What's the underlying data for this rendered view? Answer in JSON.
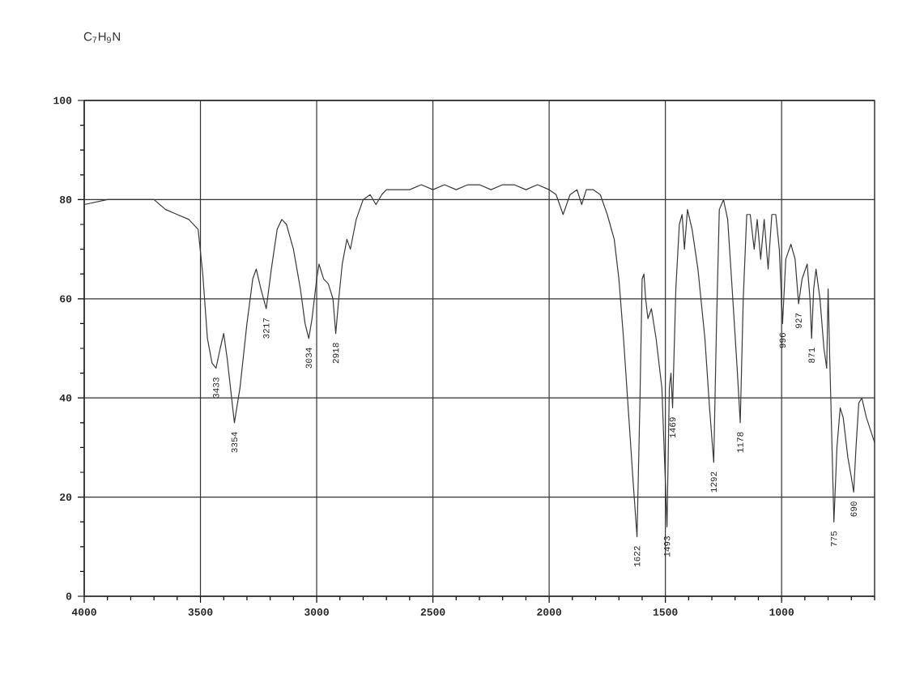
{
  "chart_data": {
    "type": "line",
    "title": "C$_{7}$H$_{9}$N",
    "x": [
      4000,
      3900,
      3800,
      3700,
      3650,
      3600,
      3550,
      3510,
      3490,
      3470,
      3450,
      3433,
      3415,
      3400,
      3385,
      3354,
      3330,
      3300,
      3275,
      3260,
      3240,
      3217,
      3195,
      3170,
      3150,
      3130,
      3100,
      3070,
      3050,
      3034,
      3020,
      3000,
      2990,
      2970,
      2950,
      2930,
      2918,
      2905,
      2890,
      2870,
      2855,
      2830,
      2800,
      2770,
      2745,
      2720,
      2700,
      2650,
      2600,
      2550,
      2500,
      2450,
      2400,
      2350,
      2300,
      2250,
      2200,
      2150,
      2100,
      2050,
      2000,
      1970,
      1940,
      1910,
      1880,
      1860,
      1840,
      1810,
      1780,
      1750,
      1720,
      1700,
      1680,
      1660,
      1640,
      1622,
      1610,
      1600,
      1592,
      1585,
      1575,
      1560,
      1540,
      1515,
      1493,
      1483,
      1476,
      1469,
      1455,
      1440,
      1428,
      1418,
      1405,
      1385,
      1360,
      1330,
      1310,
      1292,
      1280,
      1268,
      1250,
      1232,
      1210,
      1190,
      1178,
      1165,
      1150,
      1135,
      1118,
      1105,
      1090,
      1075,
      1058,
      1042,
      1025,
      1010,
      996,
      982,
      960,
      942,
      927,
      912,
      890,
      878,
      871,
      862,
      852,
      835,
      818,
      806,
      800,
      794,
      775,
      762,
      748,
      735,
      715,
      700,
      690,
      680,
      668,
      655,
      635,
      600
    ],
    "series": [
      {
        "color": "#3a3a3a",
        "values": [
          79,
          80,
          80,
          80,
          78,
          77,
          76,
          74,
          65,
          52,
          47,
          46,
          50,
          53,
          48,
          35,
          42,
          55,
          64,
          66,
          62,
          58,
          66,
          74,
          76,
          75,
          70,
          62,
          55,
          52,
          56,
          64,
          67,
          64,
          63,
          60,
          53,
          60,
          67,
          72,
          70,
          76,
          80,
          81,
          79,
          81,
          82,
          82,
          82,
          83,
          82,
          83,
          82,
          83,
          83,
          82,
          83,
          83,
          82,
          83,
          82,
          81,
          77,
          81,
          82,
          79,
          82,
          82,
          81,
          77,
          72,
          64,
          52,
          38,
          24,
          12,
          38,
          64,
          65,
          60,
          56,
          58,
          52,
          42,
          14,
          42,
          45,
          38,
          62,
          75,
          77,
          70,
          78,
          74,
          66,
          52,
          38,
          27,
          55,
          78,
          80,
          76,
          60,
          45,
          35,
          60,
          77,
          77,
          70,
          76,
          68,
          76,
          66,
          77,
          77,
          70,
          55,
          68,
          71,
          68,
          59,
          64,
          67,
          60,
          52,
          62,
          66,
          60,
          50,
          46,
          62,
          50,
          15,
          30,
          38,
          36,
          28,
          24,
          21,
          30,
          39,
          40,
          36,
          31
        ]
      }
    ],
    "xlim": [
      4000,
      600
    ],
    "ylim": [
      0,
      100
    ],
    "xticks": [
      4000,
      3500,
      3000,
      2500,
      2000,
      1500,
      1000
    ],
    "yticks": [
      0,
      20,
      40,
      60,
      80,
      100
    ],
    "grid": true,
    "annotations": [
      {
        "text": "3433",
        "x": 3433,
        "y": 46
      },
      {
        "text": "3354",
        "x": 3354,
        "y": 35
      },
      {
        "text": "3217",
        "x": 3217,
        "y": 58
      },
      {
        "text": "3034",
        "x": 3034,
        "y": 52
      },
      {
        "text": "2918",
        "x": 2918,
        "y": 53
      },
      {
        "text": "1622",
        "x": 1622,
        "y": 12
      },
      {
        "text": "1493",
        "x": 1493,
        "y": 14
      },
      {
        "text": "1469",
        "x": 1469,
        "y": 38
      },
      {
        "text": "1292",
        "x": 1292,
        "y": 27
      },
      {
        "text": "1178",
        "x": 1178,
        "y": 35
      },
      {
        "text": "996",
        "x": 996,
        "y": 55
      },
      {
        "text": "927",
        "x": 927,
        "y": 59
      },
      {
        "text": "871",
        "x": 871,
        "y": 52
      },
      {
        "text": "775",
        "x": 775,
        "y": 15
      },
      {
        "text": "690",
        "x": 690,
        "y": 21
      }
    ]
  }
}
